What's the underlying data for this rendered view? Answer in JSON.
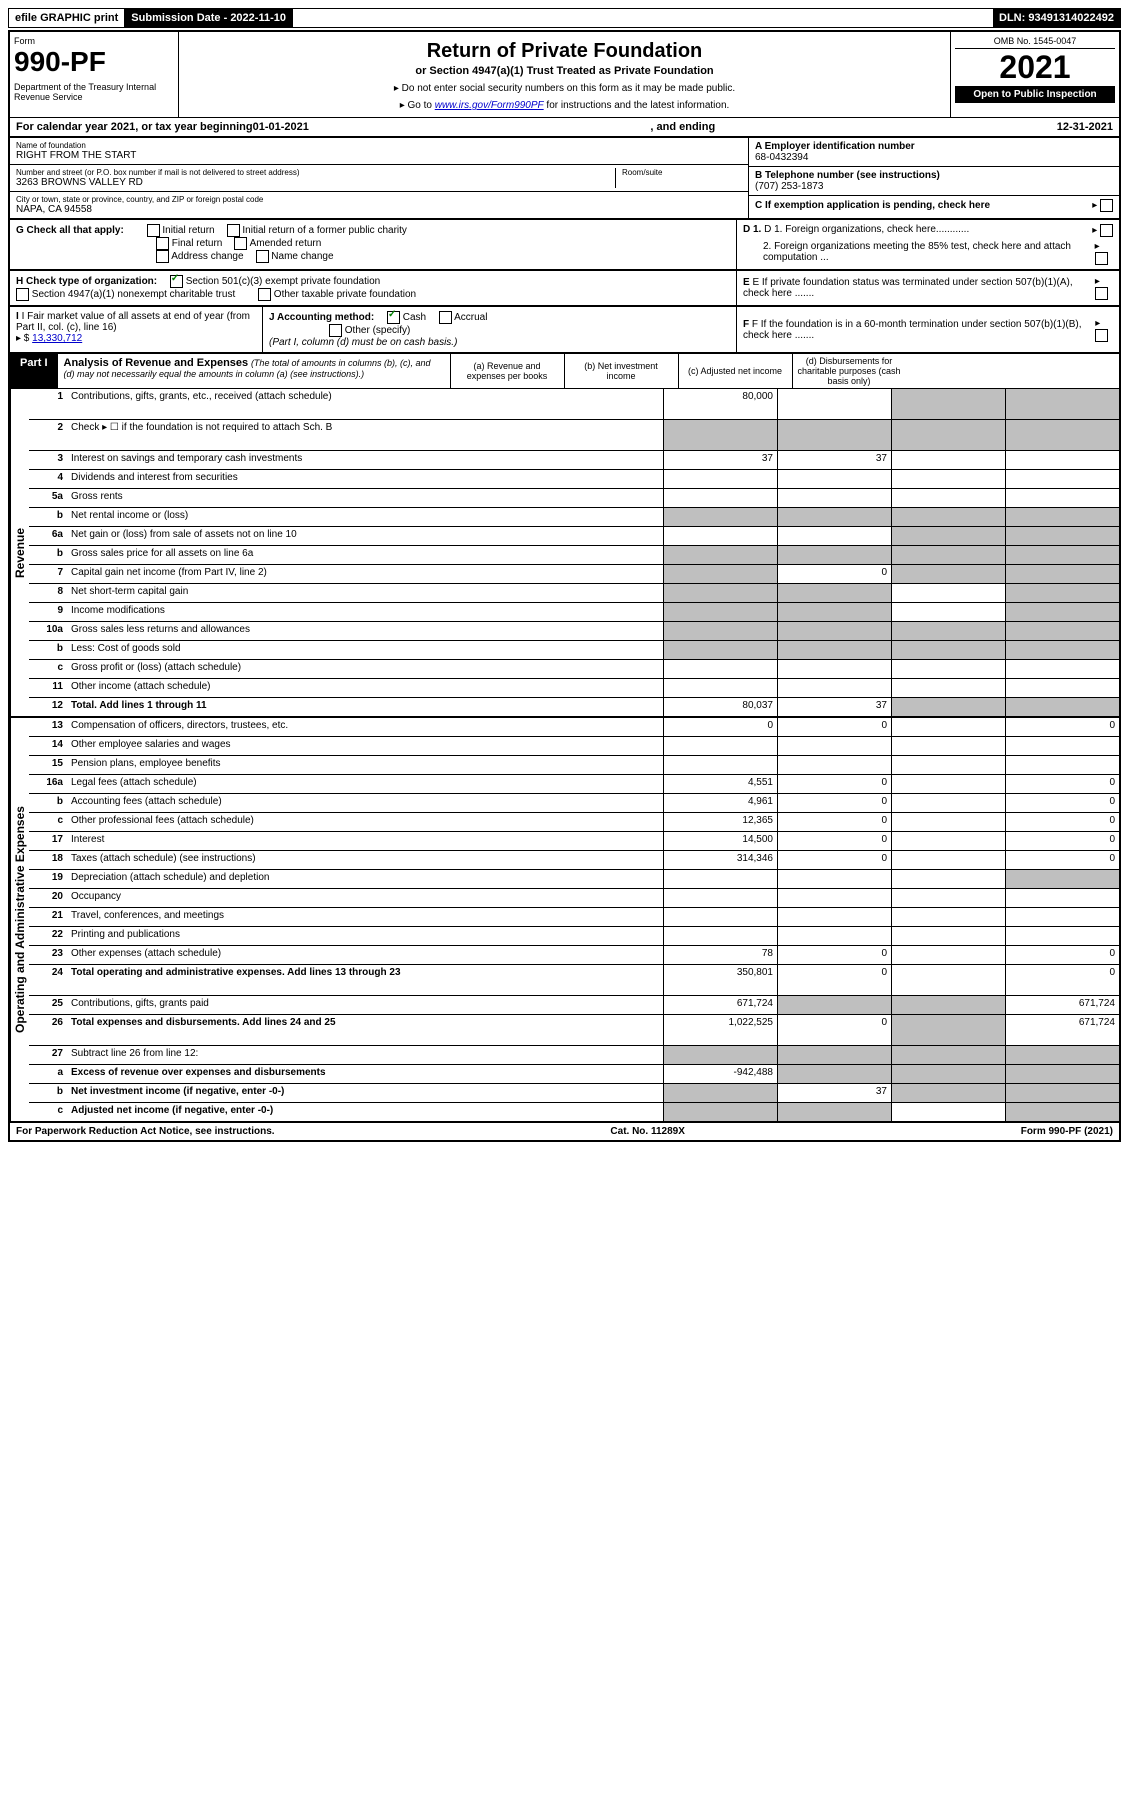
{
  "topbar": {
    "efile": "efile GRAPHIC print",
    "submission": "Submission Date - 2022-11-10",
    "dln": "DLN: 93491314022492"
  },
  "header": {
    "form_label": "Form",
    "form_number": "990-PF",
    "dept": "Department of the Treasury\nInternal Revenue Service",
    "title": "Return of Private Foundation",
    "subtitle": "or Section 4947(a)(1) Trust Treated as Private Foundation",
    "instr1": "▸ Do not enter social security numbers on this form as it may be made public.",
    "instr2_prefix": "▸ Go to ",
    "instr2_link": "www.irs.gov/Form990PF",
    "instr2_suffix": " for instructions and the latest information.",
    "omb": "OMB No. 1545-0047",
    "year": "2021",
    "open": "Open to Public Inspection"
  },
  "calendar": {
    "prefix": "For calendar year 2021, or tax year beginning ",
    "begin": "01-01-2021",
    "mid": ", and ending ",
    "end": "12-31-2021"
  },
  "info": {
    "name_label": "Name of foundation",
    "name": "RIGHT FROM THE START",
    "addr_label": "Number and street (or P.O. box number if mail is not delivered to street address)",
    "addr": "3263 BROWNS VALLEY RD",
    "room_label": "Room/suite",
    "city_label": "City or town, state or province, country, and ZIP or foreign postal code",
    "city": "NAPA, CA  94558",
    "a_label": "A Employer identification number",
    "a_value": "68-0432394",
    "b_label": "B Telephone number (see instructions)",
    "b_value": "(707) 253-1873",
    "c_label": "C If exemption application is pending, check here"
  },
  "g_section": {
    "label": "G Check all that apply:",
    "opts": [
      "Initial return",
      "Initial return of a former public charity",
      "Final return",
      "Amended return",
      "Address change",
      "Name change"
    ],
    "d1": "D 1. Foreign organizations, check here............",
    "d2": "2. Foreign organizations meeting the 85% test, check here and attach computation ..."
  },
  "h_section": {
    "label": "H Check type of organization:",
    "opt1": "Section 501(c)(3) exempt private foundation",
    "opt2": "Section 4947(a)(1) nonexempt charitable trust",
    "opt3": "Other taxable private foundation",
    "e_label": "E If private foundation status was terminated under section 507(b)(1)(A), check here ......."
  },
  "i_section": {
    "label": "I Fair market value of all assets at end of year (from Part II, col. (c), line 16)",
    "value": "13,330,712",
    "j_label": "J Accounting method:",
    "j_cash": "Cash",
    "j_accrual": "Accrual",
    "j_other": "Other (specify)",
    "j_note": "(Part I, column (d) must be on cash basis.)",
    "f_label": "F  If the foundation is in a 60-month termination under section 507(b)(1)(B), check here ......."
  },
  "part1": {
    "label": "Part I",
    "title": "Analysis of Revenue and Expenses",
    "note": "(The total of amounts in columns (b), (c), and (d) may not necessarily equal the amounts in column (a) (see instructions).)",
    "col_a": "(a) Revenue and expenses per books",
    "col_b": "(b) Net investment income",
    "col_c": "(c) Adjusted net income",
    "col_d": "(d) Disbursements for charitable purposes (cash basis only)"
  },
  "revenue_label": "Revenue",
  "expenses_label": "Operating and Administrative Expenses",
  "lines": {
    "1": {
      "desc": "Contributions, gifts, grants, etc., received (attach schedule)",
      "a": "80,000"
    },
    "2": {
      "desc": "Check ▸ ☐ if the foundation is not required to attach Sch. B"
    },
    "3": {
      "desc": "Interest on savings and temporary cash investments",
      "a": "37",
      "b": "37"
    },
    "4": {
      "desc": "Dividends and interest from securities"
    },
    "5a": {
      "desc": "Gross rents"
    },
    "5b": {
      "desc": "Net rental income or (loss)"
    },
    "6a": {
      "desc": "Net gain or (loss) from sale of assets not on line 10"
    },
    "6b": {
      "desc": "Gross sales price for all assets on line 6a"
    },
    "7": {
      "desc": "Capital gain net income (from Part IV, line 2)",
      "b": "0"
    },
    "8": {
      "desc": "Net short-term capital gain"
    },
    "9": {
      "desc": "Income modifications"
    },
    "10a": {
      "desc": "Gross sales less returns and allowances"
    },
    "10b": {
      "desc": "Less: Cost of goods sold"
    },
    "10c": {
      "desc": "Gross profit or (loss) (attach schedule)"
    },
    "11": {
      "desc": "Other income (attach schedule)"
    },
    "12": {
      "desc": "Total. Add lines 1 through 11",
      "a": "80,037",
      "b": "37",
      "bold": true
    },
    "13": {
      "desc": "Compensation of officers, directors, trustees, etc.",
      "a": "0",
      "b": "0",
      "d": "0"
    },
    "14": {
      "desc": "Other employee salaries and wages"
    },
    "15": {
      "desc": "Pension plans, employee benefits"
    },
    "16a": {
      "desc": "Legal fees (attach schedule)",
      "a": "4,551",
      "b": "0",
      "d": "0"
    },
    "16b": {
      "desc": "Accounting fees (attach schedule)",
      "a": "4,961",
      "b": "0",
      "d": "0"
    },
    "16c": {
      "desc": "Other professional fees (attach schedule)",
      "a": "12,365",
      "b": "0",
      "d": "0"
    },
    "17": {
      "desc": "Interest",
      "a": "14,500",
      "b": "0",
      "d": "0"
    },
    "18": {
      "desc": "Taxes (attach schedule) (see instructions)",
      "a": "314,346",
      "b": "0",
      "d": "0"
    },
    "19": {
      "desc": "Depreciation (attach schedule) and depletion"
    },
    "20": {
      "desc": "Occupancy"
    },
    "21": {
      "desc": "Travel, conferences, and meetings"
    },
    "22": {
      "desc": "Printing and publications"
    },
    "23": {
      "desc": "Other expenses (attach schedule)",
      "a": "78",
      "b": "0",
      "d": "0"
    },
    "24": {
      "desc": "Total operating and administrative expenses. Add lines 13 through 23",
      "a": "350,801",
      "b": "0",
      "d": "0",
      "bold": true
    },
    "25": {
      "desc": "Contributions, gifts, grants paid",
      "a": "671,724",
      "d": "671,724"
    },
    "26": {
      "desc": "Total expenses and disbursements. Add lines 24 and 25",
      "a": "1,022,525",
      "b": "0",
      "d": "671,724",
      "bold": true
    },
    "27": {
      "desc": "Subtract line 26 from line 12:"
    },
    "27a": {
      "desc": "Excess of revenue over expenses and disbursements",
      "a": "-942,488",
      "bold": true
    },
    "27b": {
      "desc": "Net investment income (if negative, enter -0-)",
      "b": "37",
      "bold": true
    },
    "27c": {
      "desc": "Adjusted net income (if negative, enter -0-)",
      "bold": true
    }
  },
  "footer": {
    "left": "For Paperwork Reduction Act Notice, see instructions.",
    "mid": "Cat. No. 11289X",
    "right": "Form 990-PF (2021)"
  },
  "colors": {
    "link": "#0000cc",
    "shaded": "#bfbfbf",
    "check": "#008000"
  }
}
